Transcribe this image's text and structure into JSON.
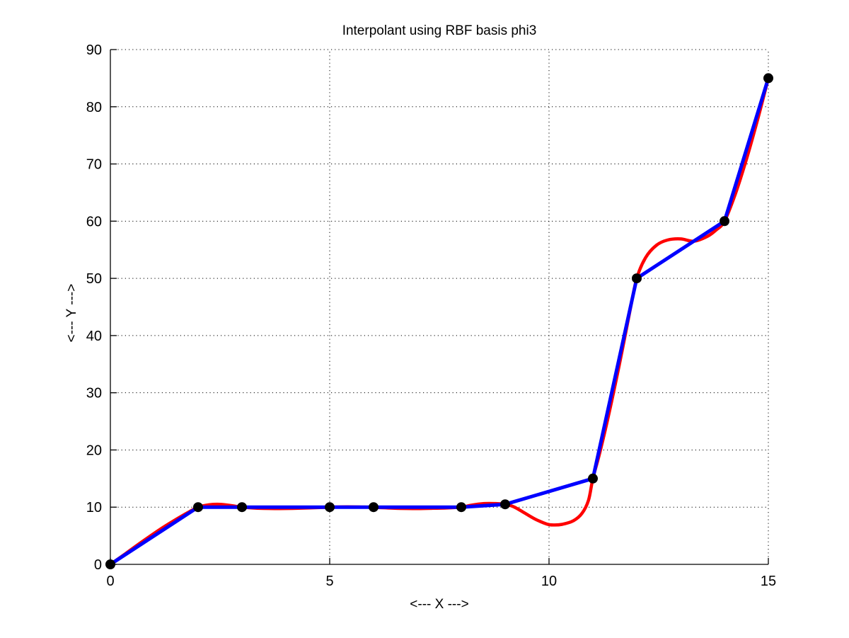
{
  "figure": {
    "background": "#ffffff",
    "text_color": "#000000"
  },
  "chart_data": {
    "type": "line",
    "title": "Interpolant using RBF basis phi3",
    "xlabel": "<--- X --->",
    "ylabel": "<--- Y --->",
    "xlim": [
      0,
      15
    ],
    "ylim": [
      0,
      90
    ],
    "x_ticks": [
      0,
      5,
      10,
      15
    ],
    "y_ticks": [
      0,
      10,
      20,
      30,
      40,
      50,
      60,
      70,
      80,
      90
    ],
    "grid": true,
    "grid_style": "dotted",
    "legend": "none",
    "series": [
      {
        "name": "rbf-interpolant-curve",
        "type": "smooth-line",
        "color": "#ff0000",
        "width": 4.5,
        "points": [
          [
            0,
            0
          ],
          [
            0.35,
            1.9
          ],
          [
            0.75,
            4.1
          ],
          [
            1.15,
            6.2
          ],
          [
            1.55,
            8.1
          ],
          [
            1.8,
            9.2
          ],
          [
            2,
            10
          ],
          [
            2.25,
            10.42
          ],
          [
            2.5,
            10.5
          ],
          [
            2.75,
            10.28
          ],
          [
            3,
            10
          ],
          [
            3.35,
            9.82
          ],
          [
            3.75,
            9.75
          ],
          [
            4.15,
            9.78
          ],
          [
            4.55,
            9.88
          ],
          [
            5,
            10
          ],
          [
            5.4,
            10.05
          ],
          [
            5.8,
            10.02
          ],
          [
            6.2,
            9.9
          ],
          [
            6.6,
            9.78
          ],
          [
            7,
            9.75
          ],
          [
            7.35,
            9.8
          ],
          [
            7.7,
            9.88
          ],
          [
            8,
            10
          ],
          [
            8.25,
            10.38
          ],
          [
            8.5,
            10.62
          ],
          [
            8.75,
            10.63
          ],
          [
            9,
            10.5
          ],
          [
            9.2,
            10.05
          ],
          [
            9.45,
            8.95
          ],
          [
            9.7,
            7.85
          ],
          [
            9.95,
            7.05
          ],
          [
            10.1,
            6.88
          ],
          [
            10.3,
            7.0
          ],
          [
            10.55,
            7.6
          ],
          [
            10.75,
            8.9
          ],
          [
            10.9,
            11.2
          ],
          [
            11,
            15
          ],
          [
            11.15,
            19.3
          ],
          [
            11.35,
            25.8
          ],
          [
            11.6,
            34.8
          ],
          [
            11.85,
            44.5
          ],
          [
            12,
            50
          ],
          [
            12.2,
            53.6
          ],
          [
            12.45,
            55.8
          ],
          [
            12.7,
            56.7
          ],
          [
            13,
            56.9
          ],
          [
            13.3,
            56.5
          ],
          [
            13.6,
            57.3
          ],
          [
            13.8,
            58.4
          ],
          [
            14,
            60
          ],
          [
            14.25,
            64.8
          ],
          [
            14.5,
            70.8
          ],
          [
            14.75,
            77.6
          ],
          [
            15,
            85
          ]
        ]
      },
      {
        "name": "piecewise-linear-data-line",
        "type": "line",
        "color": "#0000ff",
        "width": 5,
        "points": [
          [
            0,
            0
          ],
          [
            2,
            10
          ],
          [
            3,
            10
          ],
          [
            5,
            10
          ],
          [
            6,
            10
          ],
          [
            8,
            10
          ],
          [
            9,
            10.5
          ],
          [
            11,
            15
          ],
          [
            12,
            50
          ],
          [
            14,
            60
          ],
          [
            15,
            85
          ]
        ]
      },
      {
        "name": "data-markers",
        "type": "scatter",
        "color": "#000000",
        "marker": "circle",
        "marker_radius": 7,
        "points": [
          [
            0,
            0
          ],
          [
            2,
            10
          ],
          [
            3,
            10
          ],
          [
            5,
            10
          ],
          [
            6,
            10
          ],
          [
            8,
            10
          ],
          [
            9,
            10.5
          ],
          [
            11,
            15
          ],
          [
            12,
            50
          ],
          [
            14,
            60
          ],
          [
            15,
            85
          ]
        ]
      }
    ]
  }
}
